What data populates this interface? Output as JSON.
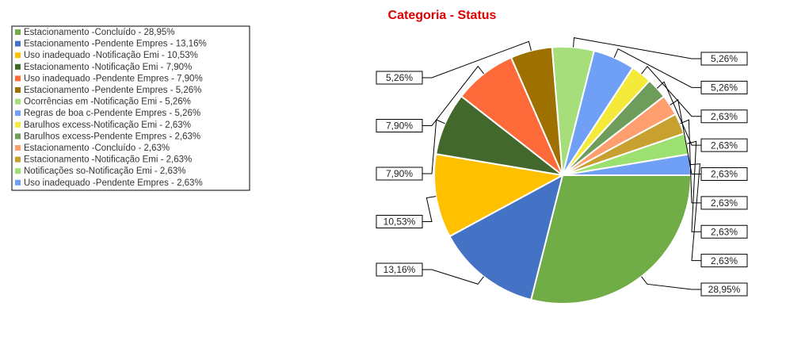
{
  "chart_data": {
    "type": "pie",
    "title": "Categoria - Status",
    "categories": [
      "Estacionamento -Concluído - 28,95%",
      "Estacionamento -Pendente Empres - 13,16%",
      "Uso inadequado -Notificação Emi - 10,53%",
      "Estacionamento -Notificação Emi - 7,90%",
      "Uso inadequado -Pendente Empres - 7,90%",
      "Estacionamento -Pendente Empres - 5,26%",
      "Ocorrências em -Notificação Emi - 5,26%",
      "Regras de boa c-Pendente Empres - 5,26%",
      "Barulhos excess-Notificação Emi - 2,63%",
      "Barulhos excess-Pendente Empres - 2,63%",
      "Estacionamento -Concluído - 2,63%",
      "Estacionamento -Notificação Emi - 2,63%",
      "Notificações so-Notificação Emi - 2,63%",
      "Uso inadequado -Pendente Empres - 2,63%"
    ],
    "values": [
      28.95,
      13.16,
      10.53,
      7.9,
      7.9,
      5.26,
      5.26,
      5.26,
      2.63,
      2.63,
      2.63,
      2.63,
      2.63,
      2.63
    ],
    "value_labels": [
      "28,95%",
      "13,16%",
      "10,53%",
      "7,90%",
      "7,90%",
      "5,26%",
      "5,26%",
      "5,26%",
      "2,63%",
      "2,63%",
      "2,63%",
      "2,63%",
      "2,63%",
      "2,63%"
    ],
    "colors": [
      "#70ad47",
      "#4472c4",
      "#ffc000",
      "#43682b",
      "#ff6a3a",
      "#9e7000",
      "#a5de7a",
      "#6fa0f5",
      "#f5e93a",
      "#6e9c5a",
      "#ff9e6e",
      "#c8a030",
      "#9be070",
      "#6fa0f5"
    ]
  }
}
